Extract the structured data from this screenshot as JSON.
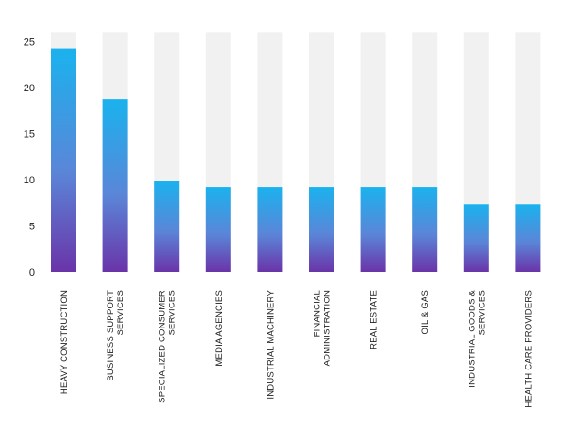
{
  "chart_data": {
    "type": "bar",
    "categories": [
      "HEAVY CONSTRUCTION",
      "BUSINESS SUPPORT SERVICES",
      "SPECIALIZED CONSUMER SERVICES",
      "MEDIA AGENCIES",
      "INDUSTRIAL MACHINERY",
      "FINANCIAL ADMINISTRATION",
      "REAL ESTATE",
      "OIL & GAS",
      "INDUSTRIAL GOODS & SERVICES",
      "HEALTH CARE PROVIDERS"
    ],
    "category_lines": [
      [
        "HEAVY CONSTRUCTION"
      ],
      [
        "BUSINESS SUPPORT",
        "SERVICES"
      ],
      [
        "SPECIALIZED CONSUMER",
        "SERVICES"
      ],
      [
        "MEDIA AGENCIES"
      ],
      [
        "INDUSTRIAL MACHINERY"
      ],
      [
        "FINANCIAL",
        "ADMINISTRATION"
      ],
      [
        "REAL ESTATE"
      ],
      [
        "OIL & GAS"
      ],
      [
        "INDUSTRIAL GOODS &",
        "SERVICES"
      ],
      [
        "HEALTH CARE PROVIDERS"
      ]
    ],
    "values": [
      24.2,
      18.7,
      9.9,
      9.2,
      9.2,
      9.2,
      9.2,
      9.2,
      7.3,
      7.3
    ],
    "ylim": [
      0,
      26
    ],
    "yticks": [
      0,
      5,
      10,
      15,
      20,
      25
    ],
    "background_bar_value": 26,
    "grid": false,
    "legend": "none",
    "colors": {
      "bar_top": "#1ab2ee",
      "bar_mid": "#5a86d8",
      "bar_bottom": "#6a34a8",
      "track": "#f1f1f1",
      "text": "#222222"
    }
  }
}
